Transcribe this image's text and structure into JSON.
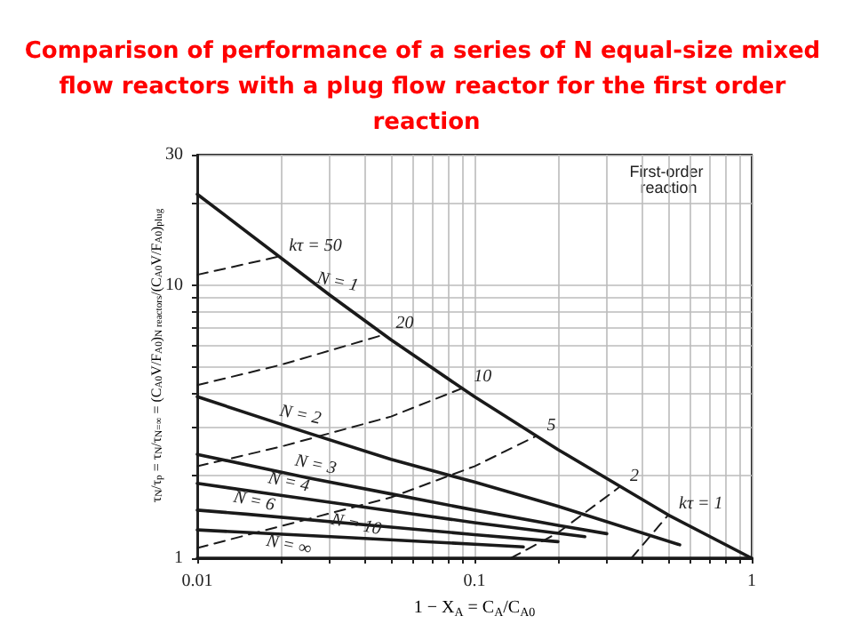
{
  "chart_data": {
    "type": "line",
    "title": "Comparison of performance of a series of N equal-size mixed flow reactors with a plug flow reactor for the first order reaction",
    "xlabel": "1 − X$_{A}$ = C$_{A}$/C$_{A0}$",
    "ylabel": "τ$_{N}$/τ$_{p}$ = τ$_{N}$/τ$_{N=∞}$ = (C$_{A0}$V/F$_{A0}$)$_{N reactors}$/(C$_{A0}$V/F$_{A0}$)$_{plug}$",
    "annotations": [
      "First-order reaction"
    ],
    "log": "xy",
    "grid": true,
    "legend": false,
    "marker": "none",
    "xlim": [
      0.01,
      1
    ],
    "ylim": [
      1,
      30
    ],
    "xticks": [
      0.01,
      {
        "value": 0.02,
        "label": null
      },
      {
        "value": 0.03,
        "label": null
      },
      {
        "value": 0.04,
        "label": null
      },
      {
        "value": 0.05,
        "label": null
      },
      {
        "value": 0.06,
        "label": null
      },
      {
        "value": 0.07,
        "label": null
      },
      {
        "value": 0.08,
        "label": null
      },
      {
        "value": 0.09,
        "label": null
      },
      0.1,
      {
        "value": 0.2,
        "label": null
      },
      {
        "value": 0.3,
        "label": null
      },
      {
        "value": 0.4,
        "label": null
      },
      {
        "value": 0.5,
        "label": null
      },
      {
        "value": 0.6,
        "label": null
      },
      {
        "value": 0.7,
        "label": null
      },
      {
        "value": 0.8,
        "label": null
      },
      {
        "value": 0.9,
        "label": null
      },
      1
    ],
    "yticks": [
      1,
      {
        "value": 2,
        "label": null
      },
      {
        "value": 3,
        "label": null
      },
      {
        "value": 4,
        "label": null
      },
      {
        "value": 5,
        "label": null
      },
      {
        "value": 6,
        "label": null
      },
      {
        "value": 7,
        "label": null
      },
      {
        "value": 8,
        "label": null
      },
      {
        "value": 9,
        "label": null
      },
      10,
      {
        "value": 20,
        "label": null
      },
      30
    ],
    "series": [
      {
        "name": "N = 1",
        "color": "#1a1a1a",
        "line_style": "solid",
        "x": [
          0.01,
          0.03,
          0.05,
          0.1,
          0.2,
          0.5,
          1
        ],
        "values": [
          21.5,
          9.2,
          6.3,
          3.9,
          2.5,
          1.44,
          1
        ]
      },
      {
        "name": "N = 2",
        "color": "#1a1a1a",
        "line_style": "solid",
        "x": [
          0.01,
          0.022,
          0.05,
          0.1,
          0.2,
          0.55
        ],
        "values": [
          3.9,
          3.0,
          2.3,
          1.9,
          1.55,
          1.12
        ]
      },
      {
        "name": "N = 3",
        "color": "#1a1a1a",
        "line_style": "solid",
        "x": [
          0.01,
          0.025,
          0.05,
          0.1,
          0.2,
          0.3
        ],
        "values": [
          2.4,
          1.97,
          1.72,
          1.5,
          1.32,
          1.23
        ]
      },
      {
        "name": "N = 4",
        "color": "#1a1a1a",
        "line_style": "solid",
        "x": [
          0.01,
          0.02,
          0.05,
          0.1,
          0.25
        ],
        "values": [
          1.88,
          1.7,
          1.49,
          1.35,
          1.2
        ]
      },
      {
        "name": "N = 6",
        "color": "#1a1a1a",
        "line_style": "solid",
        "x": [
          0.01,
          0.015,
          0.05,
          0.1,
          0.2
        ],
        "values": [
          1.5,
          1.45,
          1.3,
          1.22,
          1.15
        ]
      },
      {
        "name": "N = 10",
        "color": "#1a1a1a",
        "line_style": "solid",
        "x": [
          0.01,
          0.035,
          0.1,
          0.15
        ],
        "values": [
          1.27,
          1.19,
          1.125,
          1.1
        ]
      },
      {
        "name": "N = ∞",
        "color": "#1a1a1a",
        "line_style": "solid",
        "x": [
          0.01,
          0.02,
          1
        ],
        "values": [
          1,
          1,
          1
        ]
      },
      {
        "name": "kτ = 50",
        "color": "#1a1a1a",
        "line_style": "dashed",
        "x": [
          0.01,
          0.0196
        ],
        "values": [
          10.9,
          12.7
        ]
      },
      {
        "name": "20",
        "color": "#1a1a1a",
        "line_style": "dashed",
        "x": [
          0.01,
          0.02,
          0.0476
        ],
        "values": [
          4.3,
          5.1,
          6.6
        ]
      },
      {
        "name": "10",
        "color": "#1a1a1a",
        "line_style": "dashed",
        "x": [
          0.01,
          0.02,
          0.05,
          0.091
        ],
        "values": [
          2.17,
          2.56,
          3.3,
          4.2
        ]
      },
      {
        "name": "5",
        "color": "#1a1a1a",
        "line_style": "dashed",
        "x": [
          0.01,
          0.05,
          0.1,
          0.167
        ],
        "values": [
          1.09,
          1.67,
          2.17,
          2.8
        ]
      },
      {
        "name": "2",
        "color": "#1a1a1a",
        "line_style": "dashed",
        "x": [
          0.135,
          0.2,
          0.333
        ],
        "values": [
          1,
          1.24,
          1.82
        ]
      },
      {
        "name": "kτ = 1",
        "color": "#1a1a1a",
        "line_style": "dashed",
        "x": [
          0.368,
          0.5
        ],
        "values": [
          1,
          1.44
        ]
      }
    ]
  }
}
